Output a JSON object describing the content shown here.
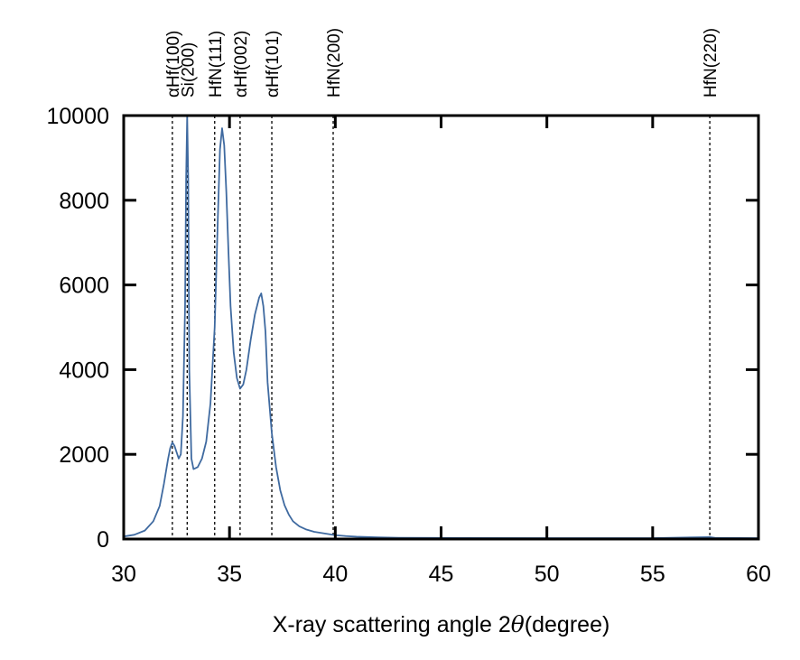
{
  "chart_data": {
    "type": "line",
    "title": "",
    "xlabel": "X-ray scattering angle 2θ(degree)",
    "xlabel_parts": {
      "prefix": "X-ray scattering angle 2",
      "symbol": "θ",
      "suffix": "(degree)"
    },
    "ylabel": "",
    "xlim": [
      30,
      60
    ],
    "ylim": [
      0,
      10000
    ],
    "x_ticks": [
      30,
      35,
      40,
      45,
      50,
      55,
      60
    ],
    "x_tick_labels": [
      "30",
      "35",
      "40",
      "45",
      "50",
      "55",
      "60"
    ],
    "y_ticks": [
      0,
      2000,
      4000,
      6000,
      8000,
      10000
    ],
    "y_tick_labels": [
      "0",
      "2000",
      "4000",
      "6000",
      "8000",
      "10000"
    ],
    "grid": false,
    "line_color": "#3f6aa0",
    "peak_markers": [
      {
        "label": "αHf(100)",
        "x": 32.3
      },
      {
        "label": "Si(200)",
        "x": 33.0
      },
      {
        "label": "HfN(111)",
        "x": 34.3
      },
      {
        "label": "αHf(002)",
        "x": 35.5
      },
      {
        "label": "αHf(101)",
        "x": 37.0
      },
      {
        "label": "HfN(200)",
        "x": 39.9
      },
      {
        "label": "HfN(220)",
        "x": 57.7
      }
    ],
    "series": [
      {
        "x": [
          30.0,
          30.5,
          31.0,
          31.4,
          31.7,
          31.9,
          32.1,
          32.2,
          32.3,
          32.4,
          32.5,
          32.6,
          32.7,
          32.8,
          32.9,
          32.95,
          33.0,
          33.05,
          33.1,
          33.2,
          33.3,
          33.5,
          33.7,
          33.9,
          34.1,
          34.3,
          34.45,
          34.55,
          34.65,
          34.75,
          34.85,
          34.95,
          35.05,
          35.2,
          35.35,
          35.5,
          35.65,
          35.8,
          36.0,
          36.2,
          36.4,
          36.5,
          36.6,
          36.7,
          36.8,
          37.0,
          37.2,
          37.4,
          37.6,
          37.8,
          38.0,
          38.3,
          38.6,
          39.0,
          39.5,
          40.0,
          40.5,
          41.0,
          42.0,
          43.0,
          45.0,
          50.0,
          55.0,
          57.7,
          58.0,
          60.0
        ],
        "y": [
          60,
          100,
          200,
          420,
          780,
          1300,
          1900,
          2150,
          2280,
          2200,
          2050,
          1900,
          2000,
          2900,
          5500,
          8500,
          10000,
          8500,
          4000,
          1900,
          1650,
          1700,
          1900,
          2300,
          3200,
          5000,
          7600,
          9200,
          9700,
          9300,
          8200,
          6800,
          5500,
          4400,
          3800,
          3550,
          3650,
          4000,
          4700,
          5300,
          5700,
          5800,
          5500,
          4900,
          3700,
          2500,
          1700,
          1150,
          800,
          580,
          420,
          300,
          230,
          170,
          130,
          90,
          70,
          55,
          40,
          30,
          25,
          20,
          20,
          45,
          25,
          20
        ]
      }
    ]
  }
}
